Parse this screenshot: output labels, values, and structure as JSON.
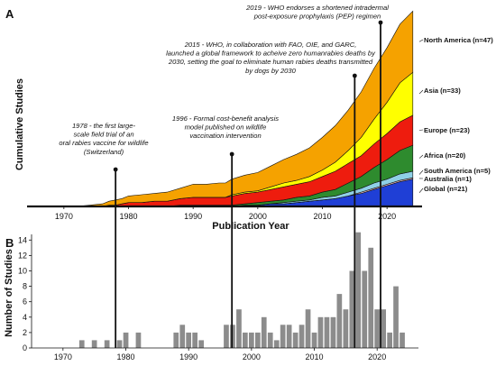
{
  "chart_data": [
    {
      "panel": "A",
      "type": "area",
      "stacked": true,
      "xlabel": "Publication Year",
      "ylabel": "Cumulative Studies",
      "xlim": [
        1965,
        2025
      ],
      "ylim": [
        0,
        153
      ],
      "xticks": [
        1970,
        1980,
        1990,
        2000,
        2010,
        2020
      ],
      "grid": false,
      "legend": "right",
      "x": [
        1965,
        1970,
        1972,
        1974,
        1976,
        1977,
        1978,
        1979,
        1980,
        1982,
        1984,
        1986,
        1988,
        1990,
        1992,
        1994,
        1995,
        1996,
        1998,
        2000,
        2002,
        2004,
        2006,
        2008,
        2010,
        2012,
        2014,
        2016,
        2018,
        2020,
        2022,
        2024
      ],
      "series": [
        {
          "name": "Global (n=21)",
          "color": "#1f3fd6",
          "values": [
            0,
            0,
            0,
            0,
            0,
            0,
            0,
            0,
            0,
            0,
            0,
            0,
            0,
            0,
            0,
            0,
            0,
            0,
            1,
            1,
            2,
            2,
            3,
            4,
            5,
            6,
            8,
            10,
            13,
            16,
            19,
            21
          ]
        },
        {
          "name": "Australia (n=1)",
          "color": "#e8bcc4",
          "values": [
            0,
            0,
            0,
            0,
            0,
            0,
            0,
            0,
            0,
            0,
            0,
            0,
            0,
            0,
            0,
            0,
            0,
            0,
            0,
            0,
            0,
            0,
            0,
            0,
            0,
            0,
            0,
            1,
            1,
            1,
            1,
            1
          ]
        },
        {
          "name": "South America (n=5)",
          "color": "#8fd0e6",
          "values": [
            0,
            0,
            0,
            0,
            0,
            0,
            0,
            0,
            0,
            0,
            0,
            0,
            0,
            0,
            0,
            0,
            0,
            0,
            0,
            0,
            0,
            1,
            1,
            1,
            2,
            2,
            3,
            3,
            4,
            4,
            5,
            5
          ]
        },
        {
          "name": "Africa (n=20)",
          "color": "#2e8b2e",
          "values": [
            0,
            0,
            0,
            0,
            0,
            0,
            0,
            0,
            0,
            0,
            0,
            0,
            1,
            1,
            1,
            1,
            1,
            1,
            1,
            2,
            2,
            2,
            3,
            3,
            4,
            5,
            7,
            9,
            12,
            15,
            18,
            20
          ]
        },
        {
          "name": "Europe (n=23)",
          "color": "#ee1c0e",
          "values": [
            0,
            0,
            0,
            0,
            0,
            1,
            1,
            2,
            3,
            3,
            4,
            4,
            5,
            6,
            6,
            6,
            6,
            7,
            8,
            8,
            9,
            10,
            10,
            11,
            12,
            14,
            15,
            16,
            18,
            20,
            22,
            23
          ]
        },
        {
          "name": "Asia (n=33)",
          "color": "#ffff00",
          "values": [
            0,
            0,
            0,
            0,
            0,
            0,
            0,
            0,
            0,
            0,
            0,
            0,
            0,
            0,
            0,
            0,
            0,
            1,
            1,
            1,
            2,
            3,
            3,
            4,
            5,
            7,
            10,
            14,
            19,
            24,
            30,
            33
          ]
        },
        {
          "name": "North America (n=47)",
          "color": "#f5a200",
          "values": [
            0,
            0,
            0,
            1,
            2,
            3,
            4,
            4,
            5,
            6,
            6,
            7,
            8,
            10,
            10,
            11,
            11,
            12,
            13,
            14,
            16,
            18,
            20,
            22,
            25,
            28,
            31,
            35,
            39,
            42,
            45,
            47
          ]
        }
      ],
      "annotations": [
        {
          "year": 1978,
          "lines": [
            "1978 - the first large-",
            "scale field trial of an",
            "oral rabies vaccine for wildlife",
            "(Switzerland)"
          ]
        },
        {
          "year": 1996,
          "lines": [
            "1996 - Formal cost-benefit analysis",
            "model published on wildlife",
            "vaccination intervention"
          ]
        },
        {
          "year": 2015,
          "lines": [
            "2015 - WHO, in collaboration with FAO, OIE, and GARC,",
            "launched a global framework to acheive zero humanrabies deaths by",
            "2030, setting the goal to eliminate human rabies deaths transmitted",
            "by dogs by 2030"
          ]
        },
        {
          "year": 2019,
          "lines": [
            "2019 - WHO endorses a shortened intradermal",
            "post-exposure prophylaxis (PEP) regimen"
          ]
        }
      ]
    },
    {
      "panel": "B",
      "type": "bar",
      "xlabel": "",
      "ylabel": "Number of Studies",
      "xlim": [
        1965,
        2026
      ],
      "ylim": [
        0,
        14.5
      ],
      "yticks": [
        0,
        2,
        4,
        6,
        8,
        10,
        12,
        14
      ],
      "xticks": [
        1970,
        1980,
        1990,
        2000,
        2010,
        2020
      ],
      "bar_color": "#8c8c8c",
      "grid": false,
      "x": [
        1973,
        1975,
        1977,
        1979,
        1980,
        1982,
        1988,
        1989,
        1990,
        1991,
        1992,
        1996,
        1997,
        1998,
        1999,
        2000,
        2001,
        2002,
        2003,
        2004,
        2005,
        2006,
        2007,
        2008,
        2009,
        2010,
        2011,
        2012,
        2013,
        2014,
        2015,
        2016,
        2017,
        2018,
        2019,
        2020,
        2021,
        2022,
        2023,
        2024
      ],
      "values": [
        1,
        1,
        1,
        1,
        2,
        2,
        2,
        3,
        2,
        2,
        1,
        3,
        3,
        5,
        2,
        2,
        2,
        4,
        2,
        1,
        3,
        3,
        2,
        3,
        5,
        2,
        4,
        4,
        4,
        7,
        5,
        10,
        15,
        10,
        13,
        5,
        5,
        2,
        8,
        2
      ]
    }
  ]
}
